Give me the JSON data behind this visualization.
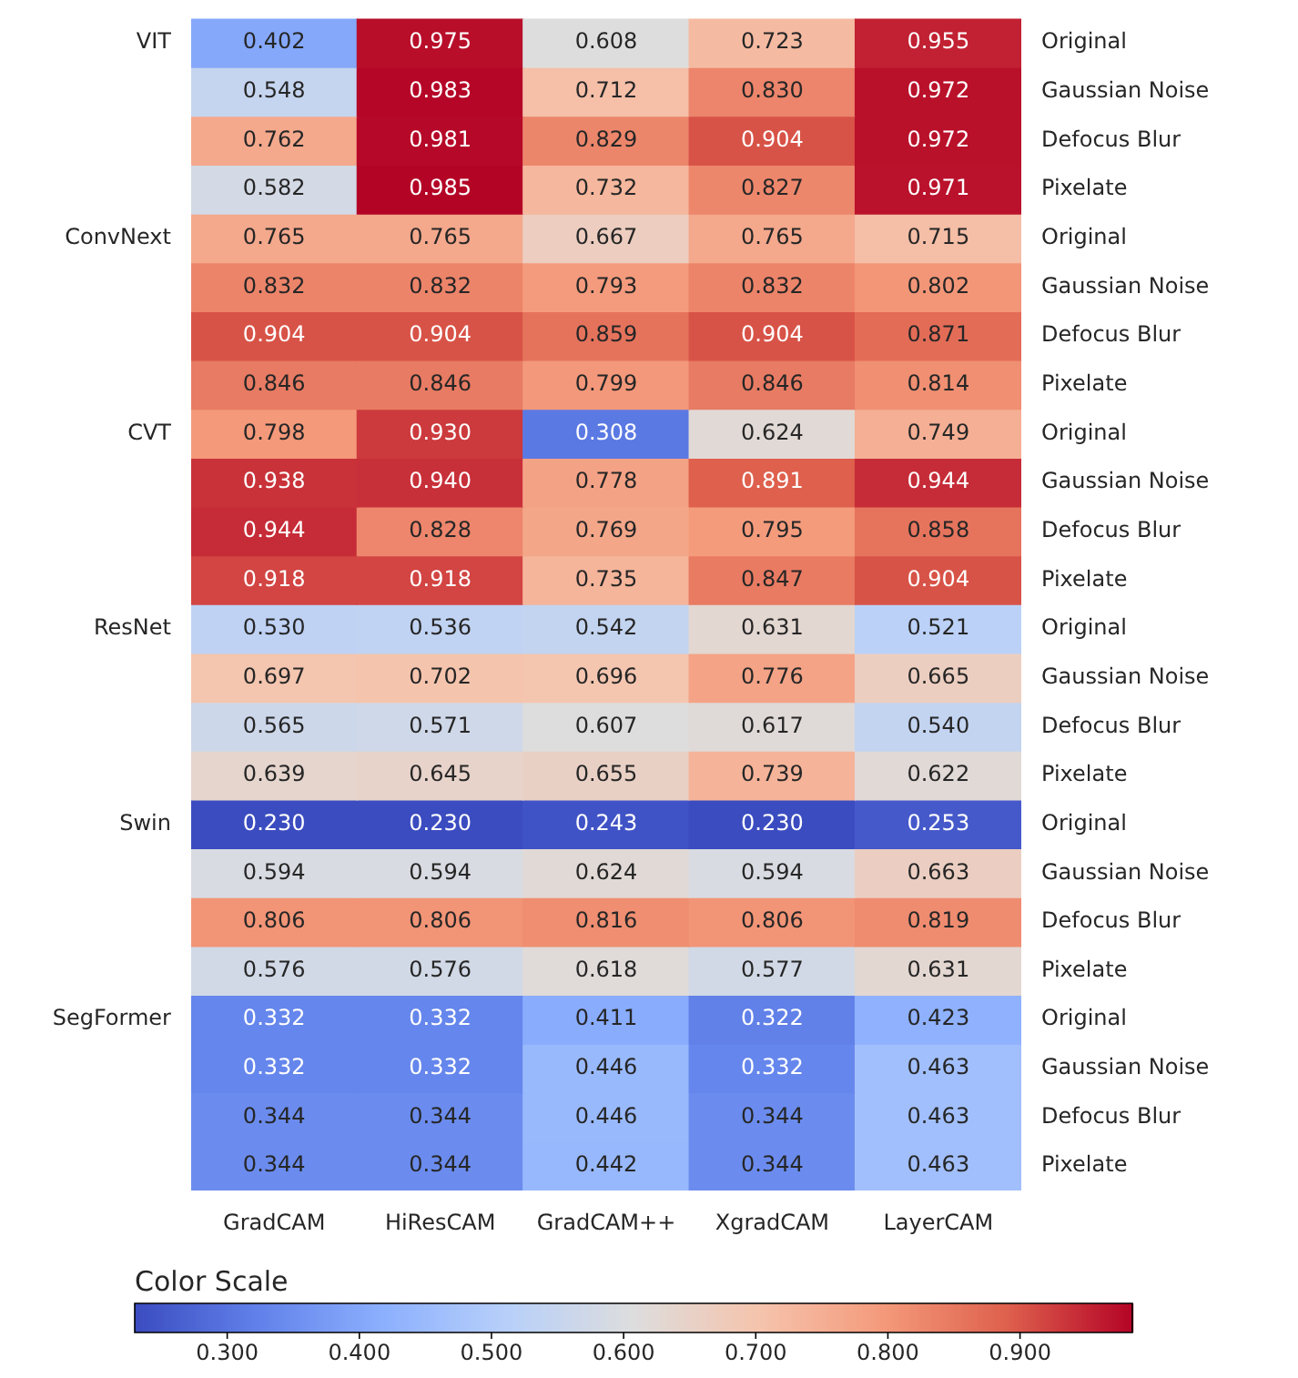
{
  "chart_data": {
    "type": "heatmap",
    "categories": [
      "GradCAM",
      "HiResCAM",
      "GradCAM++",
      "XgradCAM",
      "LayerCAM"
    ],
    "y_categories": [
      "VIT",
      null,
      null,
      null,
      "ConvNext",
      null,
      null,
      null,
      "CVT",
      null,
      null,
      null,
      "ResNet",
      null,
      null,
      null,
      "Swin",
      null,
      null,
      null,
      "SegFormer",
      null,
      null,
      null
    ],
    "y2_categories": [
      "Original",
      "Gaussian Noise",
      "Defocus Blur",
      "Pixelate",
      "Original",
      "Gaussian Noise",
      "Defocus Blur",
      "Pixelate",
      "Original",
      "Gaussian Noise",
      "Defocus Blur",
      "Pixelate",
      "Original",
      "Gaussian Noise",
      "Defocus Blur",
      "Pixelate",
      "Original",
      "Gaussian Noise",
      "Defocus Blur",
      "Pixelate",
      "Original",
      "Gaussian Noise",
      "Defocus Blur",
      "Pixelate"
    ],
    "cells": [
      [
        0.402,
        0.975,
        0.608,
        0.723,
        0.955
      ],
      [
        0.548,
        0.983,
        0.712,
        0.83,
        0.972
      ],
      [
        0.762,
        0.981,
        0.829,
        0.904,
        0.972
      ],
      [
        0.582,
        0.985,
        0.732,
        0.827,
        0.971
      ],
      [
        0.765,
        0.765,
        0.667,
        0.765,
        0.715
      ],
      [
        0.832,
        0.832,
        0.793,
        0.832,
        0.802
      ],
      [
        0.904,
        0.904,
        0.859,
        0.904,
        0.871
      ],
      [
        0.846,
        0.846,
        0.799,
        0.846,
        0.814
      ],
      [
        0.798,
        0.93,
        0.308,
        0.624,
        0.749
      ],
      [
        0.938,
        0.94,
        0.778,
        0.891,
        0.944
      ],
      [
        0.944,
        0.828,
        0.769,
        0.795,
        0.858
      ],
      [
        0.918,
        0.918,
        0.735,
        0.847,
        0.904
      ],
      [
        0.53,
        0.536,
        0.542,
        0.631,
        0.521
      ],
      [
        0.697,
        0.702,
        0.696,
        0.776,
        0.665
      ],
      [
        0.565,
        0.571,
        0.607,
        0.617,
        0.54
      ],
      [
        0.639,
        0.645,
        0.655,
        0.739,
        0.622
      ],
      [
        0.23,
        0.23,
        0.243,
        0.23,
        0.253
      ],
      [
        0.594,
        0.594,
        0.624,
        0.594,
        0.663
      ],
      [
        0.806,
        0.806,
        0.816,
        0.806,
        0.819
      ],
      [
        0.576,
        0.576,
        0.618,
        0.577,
        0.631
      ],
      [
        0.332,
        0.332,
        0.411,
        0.322,
        0.423
      ],
      [
        0.332,
        0.332,
        0.446,
        0.332,
        0.463
      ],
      [
        0.344,
        0.344,
        0.446,
        0.344,
        0.463
      ],
      [
        0.344,
        0.344,
        0.442,
        0.344,
        0.463
      ]
    ],
    "cell_labels": [
      [
        "0.402",
        "0.975",
        "0.608",
        "0.723",
        "0.955"
      ],
      [
        "0.548",
        "0.983",
        "0.712",
        "0.830",
        "0.972"
      ],
      [
        "0.762",
        "0.981",
        "0.829",
        "0.904",
        "0.972"
      ],
      [
        "0.582",
        "0.985",
        "0.732",
        "0.827",
        "0.971"
      ],
      [
        "0.765",
        "0.765",
        "0.667",
        "0.765",
        "0.715"
      ],
      [
        "0.832",
        "0.832",
        "0.793",
        "0.832",
        "0.802"
      ],
      [
        "0.904",
        "0.904",
        "0.859",
        "0.904",
        "0.871"
      ],
      [
        "0.846",
        "0.846",
        "0.799",
        "0.846",
        "0.814"
      ],
      [
        "0.798",
        "0.930",
        "0.308",
        "0.624",
        "0.749"
      ],
      [
        "0.938",
        "0.940",
        "0.778",
        "0.891",
        "0.944"
      ],
      [
        "0.944",
        "0.828",
        "0.769",
        "0.795",
        "0.858"
      ],
      [
        "0.918",
        "0.918",
        "0.735",
        "0.847",
        "0.904"
      ],
      [
        "0.530",
        "0.536",
        "0.542",
        "0.631",
        "0.521"
      ],
      [
        "0.697",
        "0.702",
        "0.696",
        "0.776",
        "0.665"
      ],
      [
        "0.565",
        "0.571",
        "0.607",
        "0.617",
        "0.540"
      ],
      [
        "0.639",
        "0.645",
        "0.655",
        "0.739",
        "0.622"
      ],
      [
        "0.230",
        "0.230",
        "0.243",
        "0.230",
        "0.253"
      ],
      [
        "0.594",
        "0.594",
        "0.624",
        "0.594",
        "0.663"
      ],
      [
        "0.806",
        "0.806",
        "0.816",
        "0.806",
        "0.819"
      ],
      [
        "0.576",
        "0.576",
        "0.618",
        "0.577",
        "0.631"
      ],
      [
        "0.332",
        "0.332",
        "0.411",
        "0.322",
        "0.423"
      ],
      [
        "0.332",
        "0.332",
        "0.446",
        "0.332",
        "0.463"
      ],
      [
        "0.344",
        "0.344",
        "0.446",
        "0.344",
        "0.463"
      ],
      [
        "0.344",
        "0.344",
        "0.442",
        "0.344",
        "0.463"
      ]
    ],
    "clabel": "Color Scale",
    "clim": [
      0.23,
      0.985
    ],
    "cticks": [
      {
        "value": 0.3,
        "label": "0.300"
      },
      {
        "value": 0.4,
        "label": "0.400"
      },
      {
        "value": 0.5,
        "label": "0.500"
      },
      {
        "value": 0.6,
        "label": "0.600"
      },
      {
        "value": 0.7,
        "label": "0.700"
      },
      {
        "value": 0.8,
        "label": "0.800"
      },
      {
        "value": 0.9,
        "label": "0.900"
      }
    ]
  }
}
